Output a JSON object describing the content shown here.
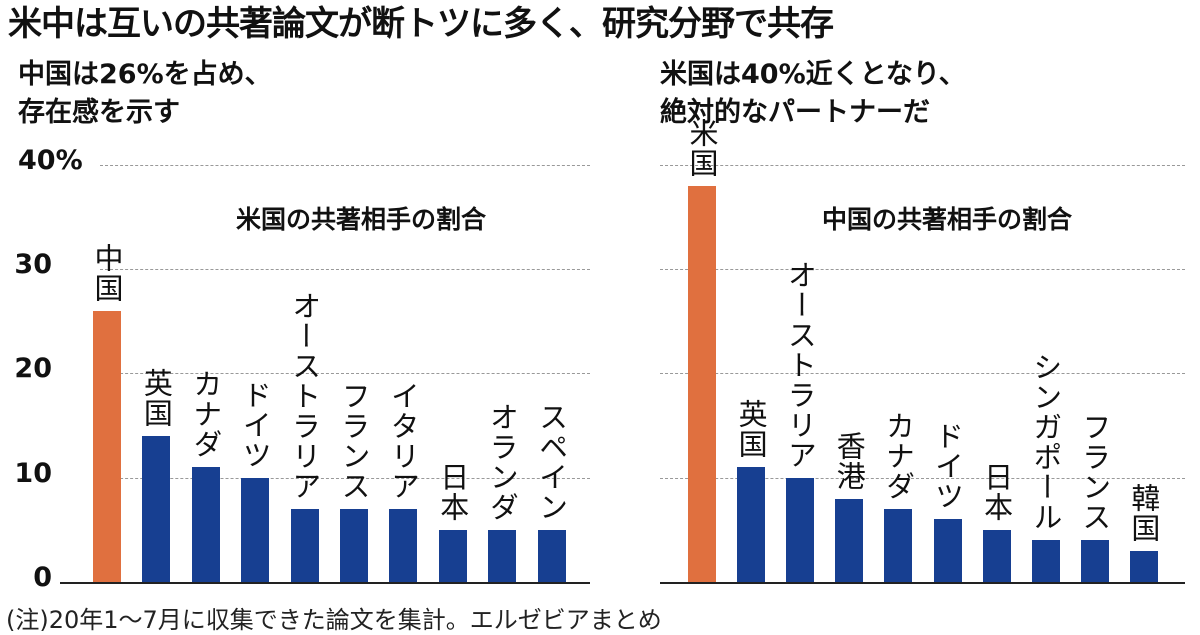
{
  "title": "米中は互いの共著論文が断トツに多く、研究分野で共存",
  "note": "(注)20年1〜7月に収集できた論文を集計。エルゼビアまとめ",
  "colors": {
    "highlight": "#e0703f",
    "bar": "#173f91"
  },
  "chart_data": [
    {
      "type": "bar",
      "subtitle": "中国は26%を占め、\n存在感を示す",
      "title": "米国の共著相手の割合",
      "ylabel": "%",
      "ylim": [
        0,
        40
      ],
      "yticks": [
        0,
        10,
        20,
        30,
        40
      ],
      "tick_labels": [
        "0",
        "10",
        "20",
        "30",
        "40%"
      ],
      "categories": [
        "中国",
        "英国",
        "カナダ",
        "ドイツ",
        "オーストラリア",
        "フランス",
        "イタリア",
        "日本",
        "オランダ",
        "スペイン"
      ],
      "values": [
        26,
        14,
        11,
        10,
        7,
        7,
        7,
        5,
        5,
        5
      ],
      "highlight_index": 0
    },
    {
      "type": "bar",
      "subtitle": "米国は40%近くとなり、\n絶対的なパートナーだ",
      "title": "中国の共著相手の割合",
      "ylim": [
        0,
        40
      ],
      "yticks": [
        0,
        10,
        20,
        30,
        40
      ],
      "categories": [
        "米国",
        "英国",
        "オーストラリア",
        "香港",
        "カナダ",
        "ドイツ",
        "日本",
        "シンガポール",
        "フランス",
        "韓国"
      ],
      "values": [
        38,
        11,
        10,
        8,
        7,
        6,
        5,
        4,
        4,
        3
      ],
      "highlight_index": 0
    }
  ]
}
